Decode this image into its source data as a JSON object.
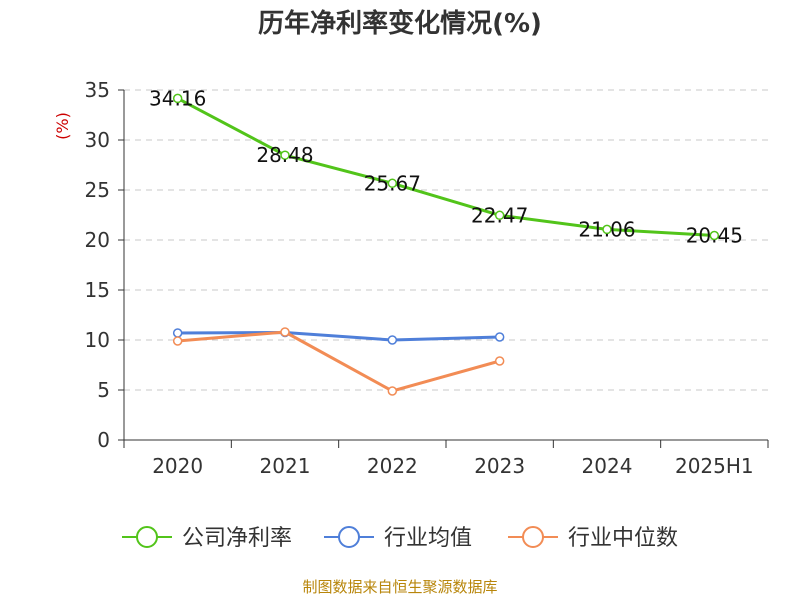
{
  "chart_data": {
    "type": "line",
    "title": "历年净利率变化情况(%)",
    "y_unit_label": "(%)",
    "categories": [
      "2020",
      "2021",
      "2022",
      "2023",
      "2024",
      "2025H1"
    ],
    "ylim": [
      0,
      35
    ],
    "y_ticks": [
      0,
      5,
      10,
      15,
      20,
      25,
      30,
      35
    ],
    "grid": true,
    "legend_position": "bottom",
    "series": [
      {
        "name": "公司净利率",
        "color": "#52c41a",
        "values": [
          34.16,
          28.48,
          25.67,
          22.47,
          21.06,
          20.45
        ],
        "data_labels": [
          "34.16",
          "28.48",
          "25.67",
          "22.47",
          "21.06",
          "20.45"
        ]
      },
      {
        "name": "行业均值",
        "color": "#4f7fd9",
        "values": [
          10.7,
          10.75,
          10.0,
          10.3,
          null,
          null
        ]
      },
      {
        "name": "行业中位数",
        "color": "#f28c55",
        "values": [
          9.9,
          10.8,
          4.9,
          7.9,
          null,
          null
        ]
      }
    ],
    "source_note": "制图数据来自恒生聚源数据库"
  }
}
